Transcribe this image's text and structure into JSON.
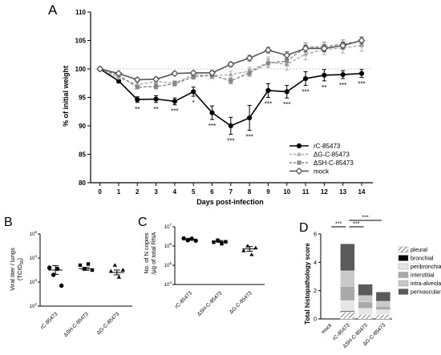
{
  "panel_labels": {
    "a": "A",
    "b": "B",
    "c": "C",
    "d": "D"
  },
  "chart_data": [
    {
      "panel": "A",
      "type": "line",
      "xlabel": "Days post-infection",
      "ylabel": "% of initial weight",
      "xlim": [
        -0.5,
        14.6
      ],
      "ylim": [
        80,
        110
      ],
      "x_ticks": [
        0,
        1,
        2,
        3,
        4,
        5,
        6,
        7,
        8,
        9,
        10,
        11,
        12,
        13,
        14
      ],
      "y_ticks": [
        80,
        85,
        90,
        95,
        100,
        105,
        110
      ],
      "grid": false,
      "reference_line": 100,
      "legend_position": "bottom-right",
      "x": [
        0,
        1,
        2,
        3,
        4,
        5,
        6,
        7,
        8,
        9,
        10,
        11,
        12,
        13,
        14
      ],
      "series": [
        {
          "name": "rC-85473",
          "color": "#000000",
          "marker": "circle-filled",
          "dash": "solid",
          "values": [
            100,
            97.9,
            94.6,
            94.7,
            94.3,
            96.0,
            92.3,
            90.0,
            91.4,
            96.2,
            96.0,
            98.3,
            98.9,
            99.0,
            99.2
          ],
          "errors": [
            0.3,
            0.4,
            0.5,
            0.6,
            0.6,
            0.8,
            1.2,
            1.5,
            2.2,
            1.2,
            1.1,
            1.2,
            1.0,
            0.7,
            0.7
          ]
        },
        {
          "name": "ΔG-C-85473",
          "color": "#aaaaaa",
          "marker": "triangle",
          "dash": "dashed",
          "values": [
            100,
            98.5,
            97.2,
            97.8,
            97.5,
            99.0,
            98.8,
            99.0,
            99.6,
            101.2,
            100.8,
            102.6,
            103.4,
            103.7,
            104.1
          ],
          "errors": [
            0.2,
            0.3,
            0.3,
            0.4,
            0.4,
            0.5,
            0.5,
            0.6,
            0.7,
            0.9,
            1.0,
            1.0,
            0.9,
            0.9,
            1.0
          ]
        },
        {
          "name": "ΔSH-C-85473",
          "color": "#888888",
          "marker": "square",
          "dash": "dashed",
          "values": [
            100,
            98.9,
            96.8,
            96.9,
            97.4,
            98.6,
            98.9,
            97.9,
            99.3,
            101.0,
            101.4,
            103.8,
            103.9,
            104.4,
            104.9
          ],
          "errors": [
            0.2,
            0.3,
            0.3,
            0.4,
            0.4,
            0.4,
            0.5,
            0.5,
            0.6,
            0.7,
            0.8,
            0.8,
            0.8,
            0.7,
            0.7
          ]
        },
        {
          "name": "mock",
          "color": "#555555",
          "marker": "diamond-open",
          "dash": "solid",
          "values": [
            100,
            99.2,
            98.1,
            98.2,
            99.2,
            99.3,
            99.3,
            100.8,
            101.9,
            103.3,
            102.4,
            103.6,
            103.6,
            104.1,
            105.0
          ],
          "errors": [
            0.2,
            0.2,
            0.3,
            0.3,
            0.3,
            0.3,
            0.4,
            0.4,
            0.5,
            0.5,
            0.6,
            0.6,
            0.6,
            0.6,
            0.6
          ]
        }
      ],
      "annotations": [
        {
          "x": 2,
          "text": "**"
        },
        {
          "x": 3,
          "text": "**"
        },
        {
          "x": 4,
          "text": "***"
        },
        {
          "x": 5,
          "text": "*"
        },
        {
          "x": 6,
          "text": "***"
        },
        {
          "x": 7,
          "text": "***"
        },
        {
          "x": 8,
          "text": "***"
        },
        {
          "x": 9,
          "text": "***"
        },
        {
          "x": 10,
          "text": "***"
        },
        {
          "x": 11,
          "text": "***"
        },
        {
          "x": 12,
          "text": "**"
        },
        {
          "x": 13,
          "text": "***"
        },
        {
          "x": 14,
          "text": "***"
        }
      ]
    },
    {
      "panel": "B",
      "type": "scatter",
      "ylabel_line1": "Viral titer / lungs",
      "ylabel_line2": "(TCID",
      "ylabel_sub": "50",
      "ylabel_close": ")",
      "log_scale": true,
      "ylim_log10": [
        2,
        5
      ],
      "y_ticks": [
        {
          "base": "10",
          "exp": "2",
          "v": 2
        },
        {
          "base": "10",
          "exp": "3",
          "v": 3
        },
        {
          "base": "10",
          "exp": "4",
          "v": 4
        },
        {
          "base": "10",
          "exp": "5",
          "v": 5
        }
      ],
      "categories": [
        "rC-85473",
        "ΔSH-C-85473",
        "ΔG-C-85473"
      ],
      "markers": [
        "circle",
        "square",
        "triangle"
      ],
      "points_log10": [
        [
          3.6,
          3.3,
          3.55,
          2.85
        ],
        [
          3.7,
          3.55,
          3.75,
          3.5
        ],
        [
          3.45,
          3.7,
          3.2,
          3.5
        ]
      ],
      "means_log10": [
        3.5,
        3.55,
        3.4
      ],
      "sem_log10": [
        0.18,
        0.06,
        0.1
      ]
    },
    {
      "panel": "C",
      "type": "scatter",
      "ylabel_line1": "No. of N copies",
      "ylabel_line2": "/µg of total RNA",
      "log_scale": true,
      "ylim_log10": [
        4,
        7
      ],
      "y_ticks": [
        {
          "base": "10",
          "exp": "4",
          "v": 4
        },
        {
          "base": "10",
          "exp": "5",
          "v": 5
        },
        {
          "base": "10",
          "exp": "6",
          "v": 6
        },
        {
          "base": "10",
          "exp": "7",
          "v": 7
        }
      ],
      "categories": [
        "rC-85473",
        "ΔSH-C-85473",
        "ΔG-C-85473"
      ],
      "markers": [
        "circle",
        "square",
        "triangle"
      ],
      "points_log10": [
        [
          6.4,
          6.3,
          6.38,
          6.28
        ],
        [
          6.2,
          6.3,
          6.12,
          6.22
        ],
        [
          5.75,
          6.0,
          5.55,
          5.9
        ]
      ],
      "means_log10": [
        6.35,
        6.24,
        5.85
      ],
      "sem_log10": [
        0.05,
        0.05,
        0.12
      ]
    },
    {
      "panel": "D",
      "type": "bar",
      "stacked": true,
      "ylabel": "Total histopathology score",
      "ylim": [
        0,
        6
      ],
      "y_ticks": [
        0,
        2,
        4,
        6
      ],
      "categories": [
        "mock",
        "rC-85473",
        "ΔSH-C-85473",
        "ΔG-C-85473"
      ],
      "series": [
        {
          "name": "pleural",
          "pattern": "hatch",
          "color": "#ffffff",
          "values": [
            0,
            0.5,
            0.3,
            0.3
          ]
        },
        {
          "name": "bronchial",
          "color": "#000000",
          "values": [
            0,
            0.05,
            0.0,
            0.0
          ]
        },
        {
          "name": "peribronchial",
          "color": "#e6e6e6",
          "values": [
            0,
            0.75,
            0.45,
            0.35
          ]
        },
        {
          "name": "interstitial",
          "color": "#aaaaaa",
          "values": [
            0,
            1.0,
            0.45,
            0.25
          ]
        },
        {
          "name": "intra-alveolar",
          "color": "#c9c9c9",
          "values": [
            0,
            1.1,
            0.45,
            0.35
          ]
        },
        {
          "name": "perivascular",
          "color": "#5a5a5a",
          "values": [
            0,
            1.9,
            0.8,
            0.65
          ]
        }
      ],
      "significance": [
        {
          "from": 0,
          "to": 1,
          "text": "***"
        },
        {
          "from": 1,
          "to": 2,
          "text": "***"
        },
        {
          "from": 1,
          "to": 3,
          "text": "***"
        }
      ],
      "legend_position": "right"
    }
  ]
}
